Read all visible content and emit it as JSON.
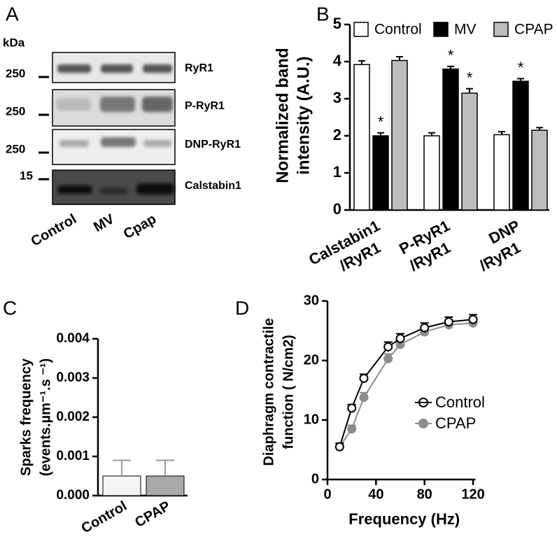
{
  "blot": {
    "label": "A",
    "unit": "kDa",
    "markers": [
      "250",
      "250",
      "250",
      "15"
    ],
    "rows": [
      "RyR1",
      "P-RyR1",
      "DNP-RyR1",
      "Calstabin1"
    ],
    "lanes": [
      "Control",
      "MV",
      "Cpap"
    ]
  },
  "chart_data": [
    {
      "type": "bar",
      "panel_label": "B",
      "ylabel": [
        "Normalized band",
        "intensity (A.U.)"
      ],
      "categories": [
        [
          "Calstabin1",
          "/RyR1"
        ],
        [
          "P-RyR1",
          "/RyR1"
        ],
        [
          "DNP",
          "/RyR1"
        ]
      ],
      "series": [
        {
          "name": "Control",
          "color": "#ffffff",
          "values": [
            3.92,
            2.0,
            2.03
          ],
          "errors": [
            0.1,
            0.08,
            0.08
          ]
        },
        {
          "name": "MV",
          "color": "#000000",
          "values": [
            2.0,
            3.8,
            3.47
          ],
          "errors": [
            0.08,
            0.07,
            0.07
          ],
          "annotations": [
            "*",
            "*",
            "*"
          ]
        },
        {
          "name": "CPAP",
          "color": "#bdbdbd",
          "values": [
            4.03,
            3.15,
            2.15
          ],
          "errors": [
            0.1,
            0.12,
            0.07
          ],
          "annotations": [
            null,
            "*",
            null
          ]
        }
      ],
      "ylim": [
        0,
        5
      ],
      "yticks": [
        0,
        1,
        2,
        3,
        4,
        5
      ],
      "legend": "top"
    },
    {
      "type": "bar",
      "panel_label": "C",
      "ylabel": [
        "Sparks frequency",
        "(events.µm⁻¹.s ⁻¹)"
      ],
      "categories": [
        "Control",
        "CPAP"
      ],
      "values": [
        0.0005,
        0.0005
      ],
      "errors": [
        0.0004,
        0.0004
      ],
      "colors": [
        "#f4f4f4",
        "#a9a9a9"
      ],
      "ylim": [
        0,
        0.004
      ],
      "yticks": [
        {
          "value": 0,
          "label": "0.000"
        },
        {
          "value": 0.001,
          "label": "0.001"
        },
        {
          "value": 0.002,
          "label": "0.002"
        },
        {
          "value": 0.003,
          "label": "0.003"
        },
        {
          "value": 0.004,
          "label": "0.004"
        }
      ]
    },
    {
      "type": "line",
      "panel_label": "D",
      "ylabel": [
        "Diaphragm contractile",
        "function ( N/cm2)"
      ],
      "xlabel": "Frequency (Hz)",
      "x": [
        10,
        20,
        30,
        50,
        60,
        80,
        100,
        120
      ],
      "series": [
        {
          "name": "CPAP",
          "color": "#8c8c8c",
          "marker": "filled",
          "values": [
            5.5,
            8.5,
            13.8,
            20.3,
            22.7,
            24.8,
            26.0,
            26.3
          ],
          "errors": [
            0.6,
            0.6,
            0.8,
            0.8,
            0.7,
            0.7,
            0.8,
            0.8
          ]
        },
        {
          "name": "Control",
          "color": "#000000",
          "marker": "open",
          "values": [
            5.5,
            12.0,
            17.0,
            22.3,
            23.7,
            25.5,
            26.5,
            26.9
          ],
          "errors": [
            0.6,
            0.6,
            0.7,
            0.8,
            0.8,
            0.8,
            0.8,
            0.8
          ]
        }
      ],
      "xlim": [
        0,
        122
      ],
      "xticks": [
        0,
        40,
        80,
        120
      ],
      "ylim": [
        0,
        30
      ],
      "yticks": [
        0,
        10,
        20,
        30
      ],
      "legend": "right"
    }
  ]
}
